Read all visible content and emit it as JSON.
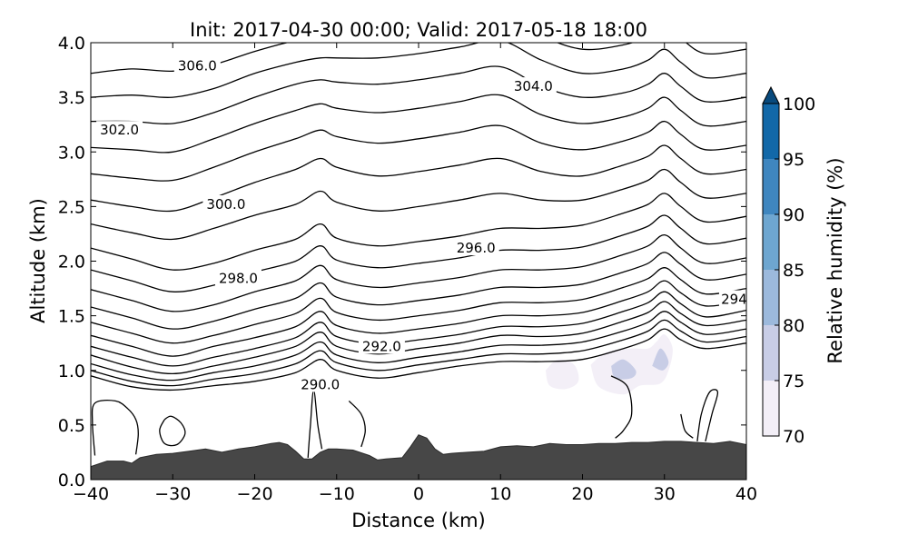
{
  "chart_data": {
    "type": "contour",
    "title": "Init: 2017-04-30 00:00; Valid: 2017-05-18 18:00",
    "xlabel": "Distance (km)",
    "ylabel": "Altitude (km)",
    "xlim": [
      -40,
      40
    ],
    "ylim": [
      0,
      4.0
    ],
    "x_ticks": [
      -40,
      -30,
      -20,
      -10,
      0,
      10,
      20,
      30,
      40
    ],
    "x_tick_labels": [
      "−40",
      "−30",
      "−20",
      "−10",
      "0",
      "10",
      "20",
      "30",
      "40"
    ],
    "y_ticks": [
      0,
      0.5,
      1.0,
      1.5,
      2.0,
      2.5,
      3.0,
      3.5,
      4.0
    ],
    "y_tick_labels": [
      "0.0",
      "0.5",
      "1.0",
      "1.5",
      "2.0",
      "2.5",
      "3.0",
      "3.5",
      "4.0"
    ],
    "colorbar": {
      "label": "Relative humidity (%)",
      "ticks": [
        "70",
        "75",
        "80",
        "85",
        "90",
        "95",
        "100"
      ],
      "levels": [
        70,
        75,
        80,
        85,
        90,
        95,
        100
      ],
      "colors": [
        "#f3eff7",
        "#c8cde6",
        "#9cb9dc",
        "#6ea6d0",
        "#3f86bf",
        "#1268a8",
        "#084a7d"
      ],
      "extend": "max"
    },
    "contour_labels": [
      {
        "text": "306.0",
        "x": -27,
        "y": 3.79
      },
      {
        "text": "304.0",
        "x": 14,
        "y": 3.6
      },
      {
        "text": "302.0",
        "x": -36.5,
        "y": 3.2
      },
      {
        "text": "300.0",
        "x": -23.5,
        "y": 2.52
      },
      {
        "text": "298.0",
        "x": -22,
        "y": 1.84
      },
      {
        "text": "296.0",
        "x": 7,
        "y": 2.12
      },
      {
        "text": "294",
        "x": 38.5,
        "y": 1.65
      },
      {
        "text": "292.0",
        "x": -4.5,
        "y": 1.22
      },
      {
        "text": "290.0",
        "x": -12,
        "y": 0.87
      }
    ],
    "terrain": {
      "x": [
        -40,
        -38,
        -36,
        -35,
        -34,
        -32,
        -30,
        -28,
        -26,
        -24,
        -22,
        -20,
        -18,
        -17,
        -16,
        -15,
        -14,
        -13,
        -12,
        -11,
        -10,
        -8,
        -6,
        -5,
        -4,
        -2,
        -1,
        0,
        1,
        2,
        3,
        4,
        6,
        8,
        10,
        12,
        14,
        16,
        18,
        20,
        22,
        24,
        26,
        28,
        30,
        32,
        34,
        36,
        38,
        40
      ],
      "y": [
        0.12,
        0.17,
        0.17,
        0.15,
        0.2,
        0.23,
        0.24,
        0.26,
        0.28,
        0.25,
        0.28,
        0.3,
        0.33,
        0.34,
        0.32,
        0.26,
        0.19,
        0.19,
        0.25,
        0.28,
        0.28,
        0.27,
        0.22,
        0.18,
        0.19,
        0.2,
        0.3,
        0.41,
        0.38,
        0.28,
        0.23,
        0.24,
        0.25,
        0.26,
        0.3,
        0.31,
        0.3,
        0.33,
        0.32,
        0.32,
        0.33,
        0.33,
        0.34,
        0.34,
        0.35,
        0.35,
        0.34,
        0.33,
        0.35,
        0.32
      ]
    },
    "isentropes": {
      "x": [
        -40,
        -35,
        -30,
        -25,
        -20,
        -15,
        -12,
        -10,
        -5,
        0,
        5,
        10,
        15,
        20,
        25,
        28,
        30,
        32,
        35,
        40
      ],
      "isolines": [
        [
          0.95,
          0.85,
          0.82,
          0.86,
          0.9,
          0.98,
          1.1,
          1.0,
          0.93,
          0.98,
          1.04,
          1.08,
          1.08,
          1.1,
          1.2,
          1.28,
          1.38,
          1.28,
          1.2,
          1.25
        ],
        [
          1.0,
          0.9,
          0.86,
          0.92,
          0.97,
          1.06,
          1.18,
          1.07,
          1.0,
          1.05,
          1.1,
          1.15,
          1.15,
          1.18,
          1.28,
          1.36,
          1.46,
          1.36,
          1.26,
          1.31
        ],
        [
          1.06,
          0.96,
          0.91,
          0.98,
          1.04,
          1.14,
          1.26,
          1.14,
          1.07,
          1.12,
          1.17,
          1.23,
          1.23,
          1.26,
          1.36,
          1.44,
          1.54,
          1.44,
          1.33,
          1.38
        ],
        [
          1.14,
          1.03,
          0.97,
          1.04,
          1.12,
          1.22,
          1.35,
          1.22,
          1.15,
          1.2,
          1.25,
          1.32,
          1.31,
          1.34,
          1.45,
          1.53,
          1.63,
          1.52,
          1.41,
          1.46
        ],
        [
          1.22,
          1.12,
          1.04,
          1.12,
          1.2,
          1.3,
          1.44,
          1.31,
          1.24,
          1.28,
          1.33,
          1.4,
          1.4,
          1.43,
          1.54,
          1.62,
          1.72,
          1.61,
          1.49,
          1.55
        ],
        [
          1.32,
          1.22,
          1.13,
          1.22,
          1.3,
          1.4,
          1.54,
          1.41,
          1.34,
          1.38,
          1.43,
          1.5,
          1.5,
          1.53,
          1.64,
          1.72,
          1.82,
          1.71,
          1.59,
          1.64
        ],
        [
          1.44,
          1.34,
          1.25,
          1.32,
          1.42,
          1.52,
          1.66,
          1.53,
          1.46,
          1.5,
          1.55,
          1.62,
          1.62,
          1.65,
          1.76,
          1.84,
          1.94,
          1.83,
          1.7,
          1.75
        ],
        [
          1.58,
          1.48,
          1.38,
          1.45,
          1.56,
          1.66,
          1.8,
          1.67,
          1.6,
          1.64,
          1.69,
          1.76,
          1.76,
          1.79,
          1.9,
          1.98,
          2.08,
          1.97,
          1.83,
          1.88
        ],
        [
          1.74,
          1.64,
          1.54,
          1.6,
          1.72,
          1.82,
          1.96,
          1.83,
          1.76,
          1.8,
          1.85,
          1.92,
          1.92,
          1.95,
          2.06,
          2.14,
          2.24,
          2.12,
          1.98,
          2.03
        ],
        [
          1.92,
          1.82,
          1.72,
          1.78,
          1.9,
          2.0,
          2.14,
          2.01,
          1.94,
          1.98,
          2.03,
          2.1,
          2.1,
          2.13,
          2.24,
          2.32,
          2.42,
          2.3,
          2.16,
          2.21
        ],
        [
          2.12,
          2.02,
          1.92,
          1.98,
          2.1,
          2.2,
          2.34,
          2.21,
          2.14,
          2.18,
          2.23,
          2.3,
          2.3,
          2.33,
          2.44,
          2.52,
          2.62,
          2.5,
          2.36,
          2.41
        ],
        [
          2.34,
          2.26,
          2.2,
          2.3,
          2.42,
          2.52,
          2.64,
          2.54,
          2.46,
          2.5,
          2.56,
          2.62,
          2.56,
          2.56,
          2.66,
          2.74,
          2.84,
          2.72,
          2.58,
          2.62
        ],
        [
          2.56,
          2.5,
          2.46,
          2.58,
          2.72,
          2.84,
          2.94,
          2.86,
          2.78,
          2.82,
          2.88,
          2.94,
          2.82,
          2.78,
          2.88,
          2.96,
          3.06,
          2.94,
          2.8,
          2.84
        ],
        [
          2.8,
          2.76,
          2.74,
          2.86,
          3.0,
          3.12,
          3.2,
          3.14,
          3.08,
          3.12,
          3.18,
          3.24,
          3.08,
          3.02,
          3.1,
          3.18,
          3.28,
          3.16,
          3.02,
          3.06
        ],
        [
          3.04,
          3.02,
          3.0,
          3.12,
          3.26,
          3.38,
          3.44,
          3.4,
          3.36,
          3.4,
          3.46,
          3.52,
          3.34,
          3.26,
          3.32,
          3.4,
          3.5,
          3.38,
          3.24,
          3.28
        ],
        [
          3.28,
          3.28,
          3.26,
          3.36,
          3.5,
          3.62,
          3.66,
          3.64,
          3.62,
          3.66,
          3.72,
          3.78,
          3.6,
          3.5,
          3.54,
          3.62,
          3.72,
          3.6,
          3.46,
          3.5
        ],
        [
          3.5,
          3.52,
          3.5,
          3.58,
          3.72,
          3.82,
          3.86,
          3.86,
          3.86,
          3.9,
          3.96,
          4.02,
          3.84,
          3.72,
          3.76,
          3.84,
          3.94,
          3.82,
          3.68,
          3.72
        ],
        [
          3.72,
          3.76,
          3.74,
          3.8,
          3.92,
          4.02,
          4.05,
          4.06,
          4.08,
          4.12,
          4.18,
          4.25,
          4.06,
          3.94,
          3.98,
          4.06,
          4.16,
          4.04,
          3.9,
          3.94
        ]
      ]
    },
    "low_contours": [
      [
        [
          -39.5,
          0.22
        ],
        [
          -39.8,
          0.52
        ],
        [
          -39.5,
          0.7
        ],
        [
          -37,
          0.72
        ],
        [
          -35.5,
          0.65
        ],
        [
          -34.5,
          0.55
        ],
        [
          -34.2,
          0.42
        ],
        [
          -34.5,
          0.23
        ]
      ],
      [
        [
          -31,
          0.55
        ],
        [
          -30.2,
          0.58
        ],
        [
          -29,
          0.52
        ],
        [
          -28.5,
          0.42
        ],
        [
          -29.5,
          0.32
        ],
        [
          -31,
          0.33
        ],
        [
          -31.6,
          0.45
        ],
        [
          -31,
          0.55
        ]
      ],
      [
        [
          -13.5,
          0.2
        ],
        [
          -13.2,
          0.5
        ],
        [
          -12.8,
          0.82
        ],
        [
          -12.3,
          0.5
        ],
        [
          -11.8,
          0.28
        ]
      ],
      [
        [
          -8.5,
          0.72
        ],
        [
          -7,
          0.6
        ],
        [
          -6.5,
          0.45
        ],
        [
          -7,
          0.3
        ]
      ],
      [
        [
          23.5,
          0.95
        ],
        [
          25.5,
          0.85
        ],
        [
          26,
          0.6
        ],
        [
          25,
          0.45
        ],
        [
          24,
          0.38
        ]
      ],
      [
        [
          32,
          0.6
        ],
        [
          32.5,
          0.45
        ],
        [
          33.5,
          0.38
        ]
      ],
      [
        [
          34,
          0.35
        ],
        [
          34.5,
          0.6
        ],
        [
          35.5,
          0.8
        ],
        [
          36.5,
          0.8
        ],
        [
          35.8,
          0.6
        ],
        [
          35,
          0.35
        ]
      ]
    ],
    "rh_regions": [
      {
        "level": 70,
        "points": [
          [
            15.5,
            1.0
          ],
          [
            17,
            1.1
          ],
          [
            19,
            1.05
          ],
          [
            19.5,
            0.9
          ],
          [
            18,
            0.83
          ],
          [
            16,
            0.86
          ]
        ]
      },
      {
        "level": 70,
        "points": [
          [
            21,
            1.05
          ],
          [
            23,
            1.17
          ],
          [
            26,
            1.2
          ],
          [
            28,
            1.2
          ],
          [
            29,
            1.26
          ],
          [
            30,
            1.33
          ],
          [
            31,
            1.2
          ],
          [
            30.5,
            1.0
          ],
          [
            29.5,
            0.88
          ],
          [
            27,
            0.86
          ],
          [
            25,
            0.78
          ],
          [
            22,
            0.85
          ]
        ]
      },
      {
        "level": 75,
        "points": [
          [
            23.5,
            1.04
          ],
          [
            25,
            1.1
          ],
          [
            26.5,
            1.0
          ],
          [
            26,
            0.93
          ],
          [
            24,
            0.93
          ]
        ]
      },
      {
        "level": 75,
        "points": [
          [
            28.5,
            1.04
          ],
          [
            29.5,
            1.2
          ],
          [
            30.5,
            1.08
          ],
          [
            29.8,
            1.0
          ]
        ]
      }
    ]
  }
}
